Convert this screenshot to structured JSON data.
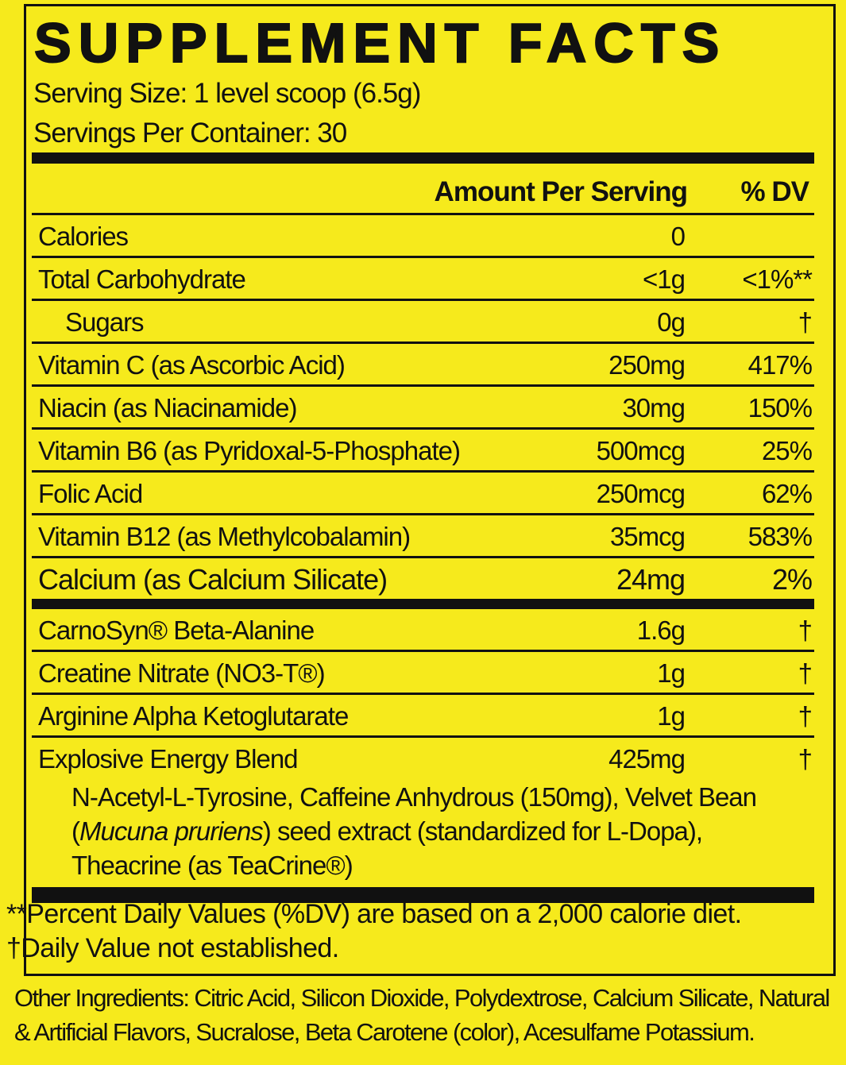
{
  "title": "SUPPLEMENT FACTS",
  "serving_size": "Serving Size: 1 level scoop (6.5g)",
  "servings_per_container": "Servings Per Container: 30",
  "header": {
    "amount": "Amount Per Serving",
    "dv": "% DV"
  },
  "groups": [
    {
      "rows": [
        {
          "name": "Calories",
          "amount": "0"
        },
        {
          "name": "Total Carbohydrate",
          "amount": "<1g",
          "dv": "<1%**"
        },
        {
          "name": "Sugars",
          "amount": "0g",
          "dv": "†",
          "sub": true
        },
        {
          "name": "Vitamin C (as Ascorbic Acid)",
          "amount": "250mg",
          "dv": "417%"
        },
        {
          "name": "Niacin (as Niacinamide)",
          "amount": "30mg",
          "dv": "150%"
        },
        {
          "name": "Vitamin B6 (as Pyridoxal-5-Phosphate)",
          "amount": "500mcg",
          "dv": "25%"
        },
        {
          "name": "Folic Acid",
          "amount": "250mcg",
          "dv": "62%"
        },
        {
          "name": "Vitamin B12 (as Methylcobalamin)",
          "amount": "35mcg",
          "dv": "583%"
        },
        {
          "name": "Calcium (as Calcium Silicate)",
          "amount": "24mg",
          "dv": "2%"
        }
      ]
    },
    {
      "rows": [
        {
          "name": "CarnoSyn® Beta-Alanine",
          "amount": "1.6g",
          "dv": "†"
        },
        {
          "name": "Creatine Nitrate (NO3-T®)",
          "amount": "1g",
          "dv": "†"
        },
        {
          "name": "Arginine Alpha Ketoglutarate",
          "amount": "1g",
          "dv": "†"
        },
        {
          "name": "Explosive Energy Blend",
          "amount": "425mg",
          "dv": "†",
          "description": [
            "N-Acetyl-L-Tyrosine, Caffeine Anhydrous (150mg), Velvet Bean (",
            "Mucuna pruriens",
            ") seed extract (standardized for L-Dopa), Theacrine (as TeaCrine®)"
          ]
        }
      ]
    }
  ],
  "footnotes": [
    "**Percent Daily Values (%DV) are based on a 2,000 calorie diet.",
    "†Daily Value not established."
  ],
  "other_ingredients": "Other Ingredients: Citric Acid, Silicon Dioxide, Polydextrose, Calcium Silicate, Natural & Artificial Flavors, Sucralose, Beta Carotene (color), Acesulfame Potassium."
}
